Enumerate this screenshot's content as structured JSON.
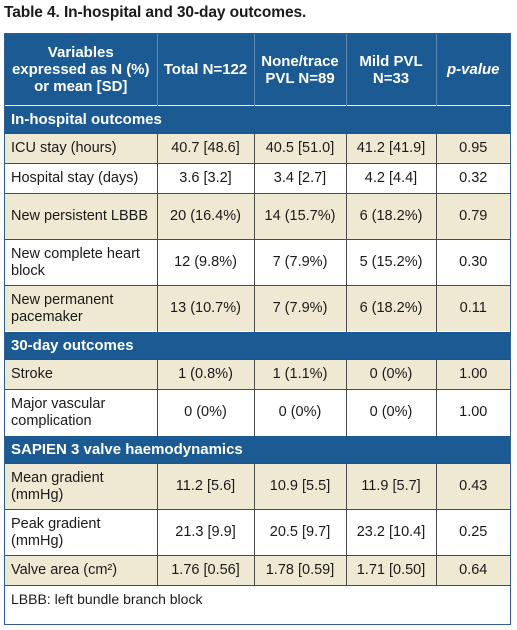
{
  "caption": "Table 4. In-hospital and 30-day outcomes.",
  "header": {
    "col0": "Variables expressed as N (%) or mean [SD]",
    "col1": "Total N=122",
    "col2": "None/trace PVL N=89",
    "col3": "Mild PVL N=33",
    "col4": "p-value"
  },
  "sections": [
    {
      "title": "In-hospital outcomes",
      "rows": [
        {
          "label": "ICU stay (hours)",
          "total": "40.7 [48.6]",
          "none": "40.5 [51.0]",
          "mild": "41.2 [41.9]",
          "p": "0.95"
        },
        {
          "label": "Hospital stay (days)",
          "total": "3.6 [3.2]",
          "none": "3.4 [2.7]",
          "mild": "4.2 [4.4]",
          "p": "0.32"
        },
        {
          "label": "New persistent LBBB",
          "total": "20 (16.4%)",
          "none": "14 (15.7%)",
          "mild": "6 (18.2%)",
          "p": "0.79"
        },
        {
          "label": "New complete heart block",
          "total": "12 (9.8%)",
          "none": "7 (7.9%)",
          "mild": "5 (15.2%)",
          "p": "0.30"
        },
        {
          "label": "New permanent pacemaker",
          "total": "13 (10.7%)",
          "none": "7 (7.9%)",
          "mild": "6 (18.2%)",
          "p": "0.11"
        }
      ]
    },
    {
      "title": "30-day outcomes",
      "rows": [
        {
          "label": "Stroke",
          "total": "1 (0.8%)",
          "none": "1 (1.1%)",
          "mild": "0 (0%)",
          "p": "1.00"
        },
        {
          "label": "Major vascular complication",
          "total": "0 (0%)",
          "none": "0 (0%)",
          "mild": "0 (0%)",
          "p": "1.00"
        }
      ]
    },
    {
      "title": "SAPIEN 3 valve haemodynamics",
      "rows": [
        {
          "label": "Mean gradient (mmHg)",
          "total": "11.2 [5.6]",
          "none": "10.9 [5.5]",
          "mild": "11.9 [5.7]",
          "p": "0.43"
        },
        {
          "label": "Peak gradient (mmHg)",
          "total": "21.3 [9.9]",
          "none": "20.5 [9.7]",
          "mild": "23.2 [10.4]",
          "p": "0.25"
        },
        {
          "label": "Valve area (cm²)",
          "total": "1.76 [0.56]",
          "none": "1.78 [0.59]",
          "mild": "1.71 [0.50]",
          "p": "0.64"
        }
      ]
    }
  ],
  "footnote": "LBBB: left bundle branch block",
  "colors": {
    "header_bg": "#1c5a93",
    "shaded_row": "#efe8d3"
  }
}
